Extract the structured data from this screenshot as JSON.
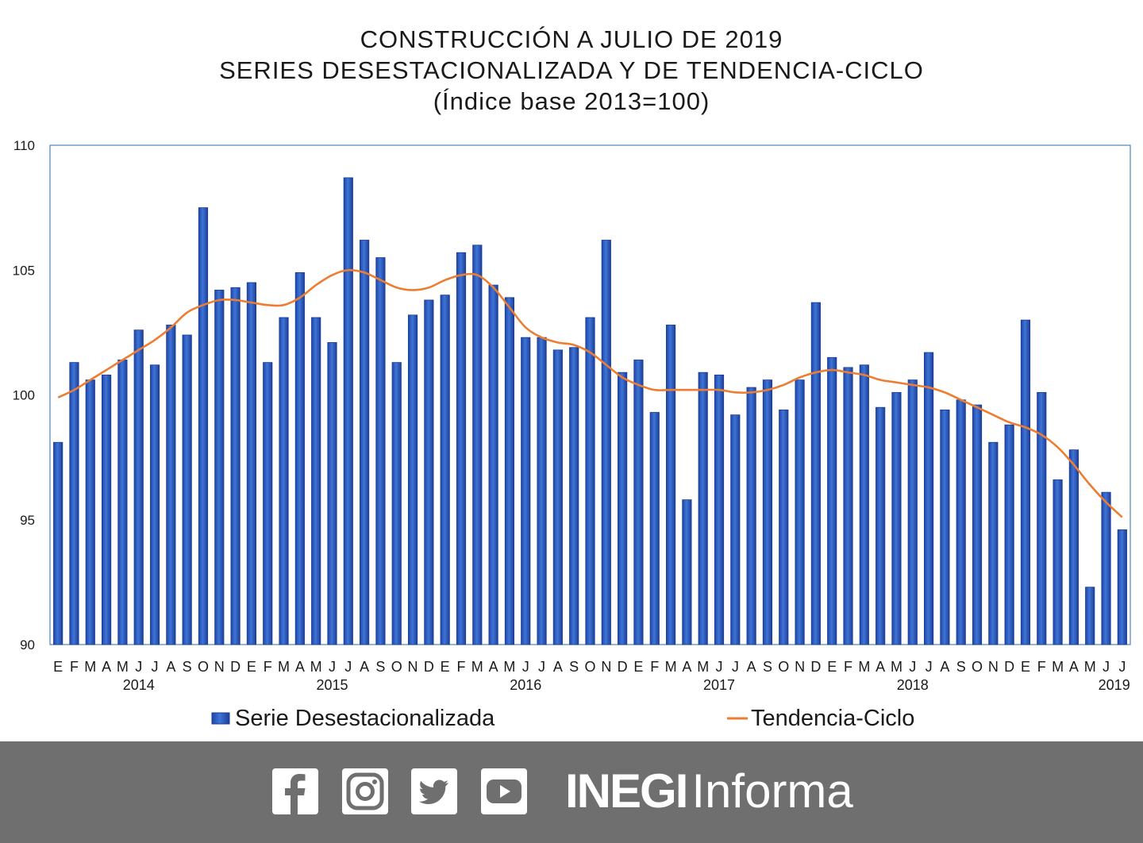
{
  "chart_data": {
    "type": "bar",
    "title_lines": [
      "CONSTRUCCIÓN A JULIO DE 2019",
      "SERIES DESESTACIONALIZADA Y DE TENDENCIA-CICLO",
      "(Índice base 2013=100)"
    ],
    "ylim": [
      90,
      110
    ],
    "yticks": [
      "90",
      "95",
      "100",
      "105",
      "110"
    ],
    "categories": [
      "E",
      "F",
      "M",
      "A",
      "M",
      "J",
      "J",
      "A",
      "S",
      "O",
      "N",
      "D",
      "E",
      "F",
      "M",
      "A",
      "M",
      "J",
      "J",
      "A",
      "S",
      "O",
      "N",
      "D",
      "E",
      "F",
      "M",
      "A",
      "M",
      "J",
      "J",
      "A",
      "S",
      "O",
      "N",
      "D",
      "E",
      "F",
      "M",
      "A",
      "M",
      "J",
      "J",
      "A",
      "S",
      "O",
      "N",
      "D",
      "E",
      "F",
      "M",
      "A",
      "M",
      "J",
      "J",
      "A",
      "S",
      "O",
      "N",
      "D",
      "E",
      "F",
      "M",
      "A",
      "M",
      "J",
      "J"
    ],
    "year_labels": [
      {
        "label": "2014",
        "index": 5
      },
      {
        "label": "2015",
        "index": 17
      },
      {
        "label": "2016",
        "index": 29
      },
      {
        "label": "2017",
        "index": 41
      },
      {
        "label": "2018",
        "index": 53
      },
      {
        "label": "2019",
        "index": 65.5
      }
    ],
    "series": [
      {
        "name": "Serie Desestacionalizada",
        "type": "bar",
        "color": "#2e5fc2",
        "values": [
          98.1,
          101.3,
          100.6,
          100.8,
          101.4,
          102.6,
          101.2,
          102.8,
          102.4,
          107.5,
          104.2,
          104.3,
          104.5,
          101.3,
          103.1,
          104.9,
          103.1,
          102.1,
          108.7,
          106.2,
          105.5,
          101.3,
          103.2,
          103.8,
          104.0,
          105.7,
          106.0,
          104.4,
          103.9,
          102.3,
          102.3,
          101.8,
          101.9,
          103.1,
          106.2,
          100.9,
          101.4,
          99.3,
          102.8,
          95.8,
          100.9,
          100.8,
          99.2,
          100.3,
          100.6,
          99.4,
          100.6,
          103.7,
          101.5,
          101.1,
          101.2,
          99.5,
          100.1,
          100.6,
          101.7,
          99.4,
          99.8,
          99.6,
          98.1,
          98.8,
          103.0,
          100.1,
          96.6,
          97.8,
          92.3,
          96.1,
          94.6
        ]
      },
      {
        "name": "Tendencia-Ciclo",
        "type": "line",
        "color": "#ed7d31",
        "values": [
          99.9,
          100.2,
          100.6,
          101.0,
          101.4,
          101.8,
          102.2,
          102.7,
          103.3,
          103.6,
          103.8,
          103.8,
          103.7,
          103.6,
          103.6,
          103.9,
          104.4,
          104.8,
          105.0,
          104.9,
          104.6,
          104.3,
          104.2,
          104.3,
          104.6,
          104.8,
          104.8,
          104.3,
          103.5,
          102.7,
          102.3,
          102.1,
          102.0,
          101.7,
          101.2,
          100.7,
          100.4,
          100.2,
          100.2,
          100.2,
          100.2,
          100.2,
          100.1,
          100.1,
          100.2,
          100.4,
          100.7,
          100.9,
          101.0,
          100.9,
          100.8,
          100.6,
          100.5,
          100.4,
          100.3,
          100.1,
          99.8,
          99.5,
          99.2,
          98.9,
          98.7,
          98.4,
          97.9,
          97.2,
          96.4,
          95.7,
          95.1
        ]
      }
    ],
    "legend": {
      "position": "bottom",
      "bar_label": "Serie Desestacionalizada",
      "line_label": "Tendencia-Ciclo"
    }
  },
  "footer": {
    "social_icons": [
      "facebook-icon",
      "instagram-icon",
      "twitter-icon",
      "youtube-icon"
    ],
    "brand_bold": "INEGI",
    "brand_light": "Informa",
    "background": "#6f6f6f"
  }
}
